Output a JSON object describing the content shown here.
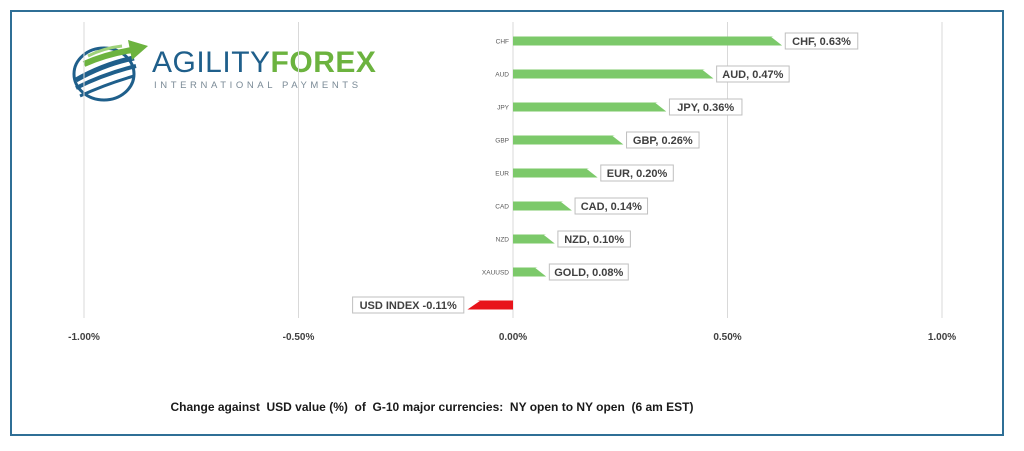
{
  "logo": {
    "word_part1": "AGILITY",
    "word_part2": "FOREX",
    "subtitle": "INTERNATIONAL PAYMENTS",
    "colors": {
      "blue": "#1f5f8b",
      "green": "#6cb33f",
      "grey": "#7a8a96"
    }
  },
  "caption": "Change against  USD value (%)  of  G-10 major currencies:  NY open to NY open  (6 am EST)",
  "chart_data": {
    "type": "bar",
    "orientation": "horizontal",
    "xlim": [
      -1.0,
      1.0
    ],
    "xticks": [
      -1.0,
      -0.5,
      0.0,
      0.5,
      1.0
    ],
    "xtick_labels": [
      "-1.00%",
      "-0.50%",
      "0.00%",
      "0.50%",
      "1.00%"
    ],
    "grid": "vertical",
    "categories": [
      "CHF",
      "AUD",
      "JPY",
      "GBP",
      "EUR",
      "CAD",
      "NZD",
      "XAUUSD",
      ""
    ],
    "values": [
      0.63,
      0.47,
      0.36,
      0.26,
      0.2,
      0.14,
      0.1,
      0.08,
      -0.11
    ],
    "data_labels": [
      "CHF, 0.63%",
      "AUD, 0.47%",
      "JPY, 0.36%",
      "GBP, 0.26%",
      "EUR, 0.20%",
      "CAD, 0.14%",
      "NZD, 0.10%",
      "GOLD, 0.08%",
      "USD INDEX -0.11%"
    ],
    "colors": {
      "positive": "#7cc96a",
      "negative": "#e8141b",
      "grid": "#d9d9d9",
      "label_border": "#bfbfbf"
    }
  }
}
